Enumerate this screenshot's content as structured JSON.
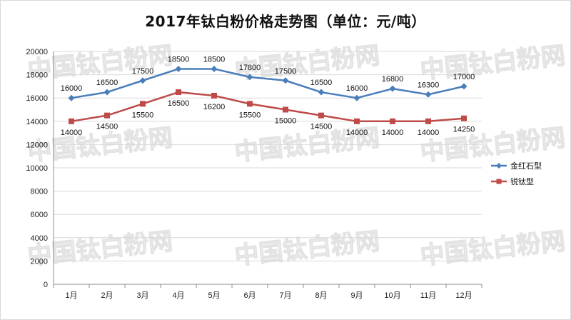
{
  "chart_data": {
    "type": "line",
    "title": "2017年钛白粉价格走势图（单位：元/吨）",
    "categories": [
      "1月",
      "2月",
      "3月",
      "4月",
      "5月",
      "6月",
      "7月",
      "8月",
      "9月",
      "10月",
      "11月",
      "12月"
    ],
    "series": [
      {
        "name": "金红石型",
        "color": "#4a7ebb",
        "values": [
          16000,
          16500,
          17500,
          18500,
          18500,
          17800,
          17500,
          16500,
          16000,
          16800,
          16300,
          17000
        ],
        "label_position": "above"
      },
      {
        "name": "锐钛型",
        "color": "#be4b48",
        "values": [
          14000,
          14500,
          15500,
          16500,
          16200,
          15500,
          15000,
          14500,
          14000,
          14000,
          14000,
          14250
        ],
        "label_position": "below"
      }
    ],
    "ylim": [
      0,
      20000
    ],
    "yticks": [
      0,
      2000,
      4000,
      6000,
      8000,
      10000,
      12000,
      14000,
      16000,
      18000,
      20000
    ],
    "grid": true,
    "legend": "right",
    "xlabel": "",
    "ylabel": ""
  },
  "watermark": "中国钛白粉网"
}
